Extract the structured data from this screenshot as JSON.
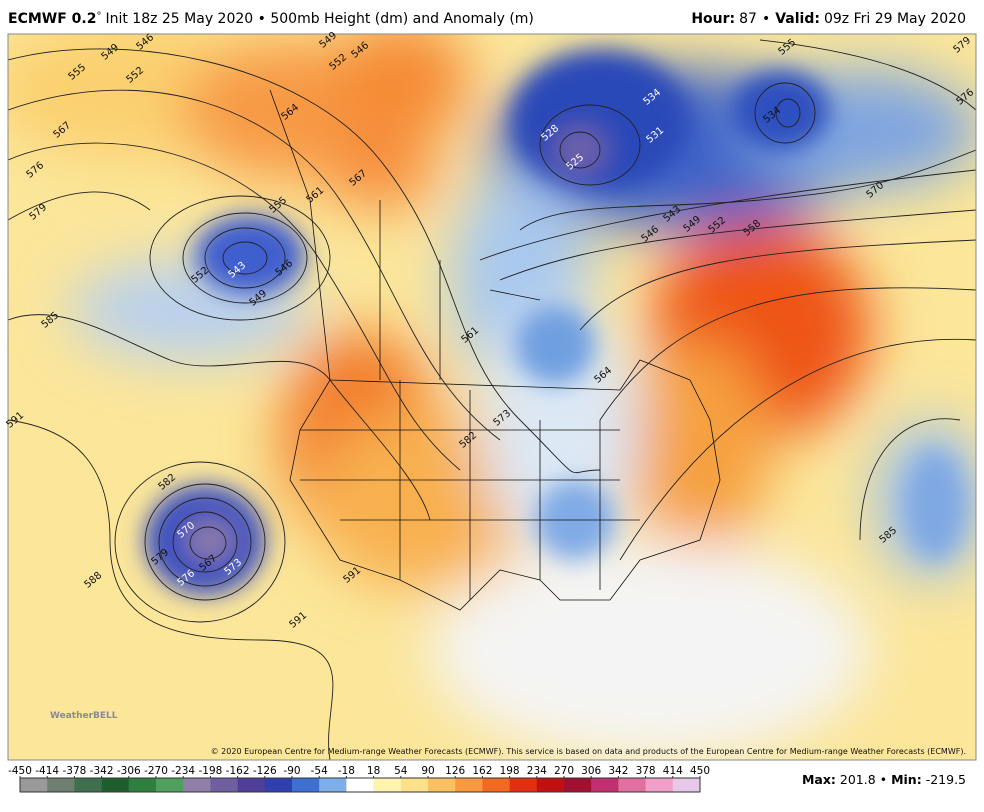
{
  "header": {
    "model": "ECMWF 0.2",
    "degree": "°",
    "description": "Init 18z 25 May 2020 • 500mb Height (dm) and Anomaly (m)",
    "hour_label": "Hour:",
    "hour": "87",
    "separator": "•",
    "valid_label": "Valid:",
    "valid": "09z Fri 29 May 2020"
  },
  "map": {
    "contour_labels": [
      549,
      546,
      555,
      552,
      567,
      576,
      579,
      585,
      591,
      588,
      564,
      561,
      555,
      543,
      552,
      546,
      549,
      567,
      552,
      546,
      549,
      534,
      531,
      528,
      525,
      534,
      555,
      579,
      576,
      570,
      558,
      552,
      549,
      543,
      546,
      561,
      564,
      573,
      582,
      582,
      570,
      567,
      573,
      576,
      579,
      591,
      591,
      585
    ],
    "logo": "WeatherBELL",
    "copyright": "© 2020 European Centre for Medium-range Weather Forecasts (ECMWF). This service is based on data and products of the European Centre for Medium-range Weather Forecasts (ECMWF)."
  },
  "colorbar": {
    "ticks": [
      -450,
      -414,
      -378,
      -342,
      -306,
      -270,
      -234,
      -198,
      -162,
      -126,
      -90,
      -54,
      -18,
      18,
      54,
      90,
      126,
      162,
      198,
      234,
      270,
      306,
      342,
      378,
      414,
      450
    ],
    "colors": [
      "#9a9a9a",
      "#6f7f6f",
      "#3f6f4f",
      "#1f5f2f",
      "#2f7f3f",
      "#4f9f5f",
      "#8f7fa9",
      "#6f5fa0",
      "#4f3f99",
      "#2f3faf",
      "#3f6fd0",
      "#7fafe8",
      "#ffffff",
      "#fff3b0",
      "#fde08a",
      "#fbc060",
      "#f99a40",
      "#f06a20",
      "#e03010",
      "#c01010",
      "#a01030",
      "#c03070",
      "#e070a0",
      "#f0a0c8",
      "#e8c8e8"
    ]
  },
  "footer": {
    "max_label": "Max:",
    "max": 201.8,
    "separator": "•",
    "min_label": "Min:",
    "min": -219.5
  }
}
